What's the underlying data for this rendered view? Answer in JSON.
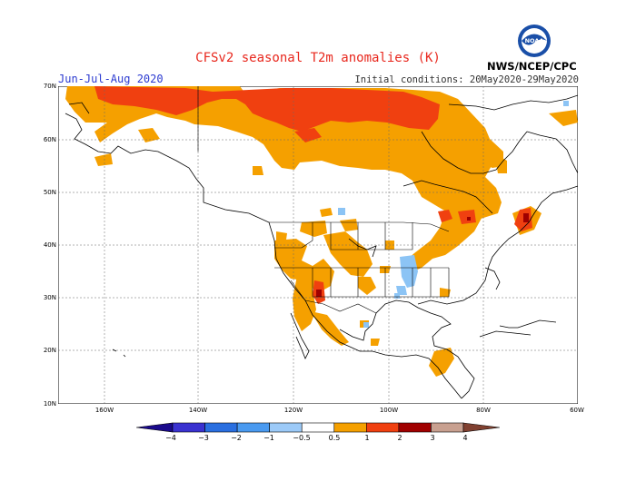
{
  "header": {
    "title": "CFSv2 seasonal T2m anomalies (K)",
    "period": "Jun-Jul-Aug 2020",
    "init": "Initial conditions: 20May2020-29May2020",
    "agency": "NWS/NCEP/CPC",
    "logo_text": "NOAA"
  },
  "axes": {
    "lat_labels": [
      "70N",
      "60N",
      "50N",
      "40N",
      "30N",
      "20N",
      "10N"
    ],
    "lon_labels": [
      "160W",
      "140W",
      "120W",
      "100W",
      "80W",
      "60W"
    ]
  },
  "colorbar": {
    "ticks": [
      "−4",
      "−3",
      "−2",
      "−1",
      "−0.5",
      "0.5",
      "1",
      "2",
      "3",
      "4"
    ],
    "colors": [
      "#1a0a8c",
      "#3a32d0",
      "#2a6fe0",
      "#4a9af0",
      "#9ccaf8",
      "#ffffff",
      "#f5a000",
      "#f04010",
      "#a00000",
      "#c8a090",
      "#804030"
    ]
  },
  "colors": {
    "anomaly_0_5_1": "#f5a000",
    "anomaly_1_2": "#f04010",
    "anomaly_2_3": "#a00000",
    "anomaly_neg": "#8cc4f5",
    "title": "#e8281e",
    "period": "#2b3ad0"
  }
}
